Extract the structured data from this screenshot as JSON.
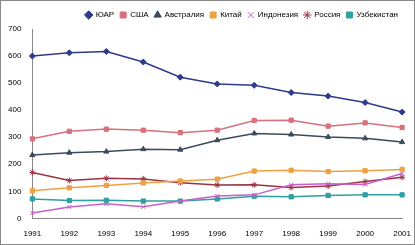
{
  "chart_data": {
    "type": "line",
    "categories": [
      "1991",
      "1992",
      "1993",
      "1994",
      "1995",
      "1996",
      "1997",
      "1998",
      "1999",
      "2000",
      "2001"
    ],
    "series": [
      {
        "name": "ЮАР",
        "color": "#2e3a8c",
        "marker": "diamond",
        "values": [
          600,
          612,
          617,
          578,
          522,
          497,
          492,
          465,
          452,
          428,
          393
        ]
      },
      {
        "name": "США",
        "color": "#d9707c",
        "marker": "square",
        "values": [
          294,
          322,
          330,
          326,
          317,
          326,
          362,
          363,
          341,
          353,
          336
        ]
      },
      {
        "name": "Австралия",
        "color": "#3c4a5c",
        "marker": "triangle",
        "values": [
          234,
          243,
          247,
          256,
          254,
          289,
          314,
          310,
          301,
          296,
          282
        ]
      },
      {
        "name": "Китай",
        "color": "#f0a040",
        "marker": "square",
        "values": [
          102,
          113,
          122,
          131,
          138,
          145,
          175,
          178,
          173,
          176,
          181
        ]
      },
      {
        "name": "Индонезия",
        "color": "#c860c8",
        "marker": "cross",
        "values": [
          20,
          42,
          54,
          43,
          64,
          83,
          87,
          124,
          128,
          125,
          166
        ]
      },
      {
        "name": "Россия",
        "color": "#993344",
        "marker": "star",
        "values": [
          170,
          140,
          148,
          146,
          132,
          123,
          124,
          114,
          120,
          136,
          152
        ]
      },
      {
        "name": "Узбекистан",
        "color": "#2f9fa0",
        "marker": "square",
        "values": [
          72,
          66,
          67,
          64,
          64,
          72,
          82,
          80,
          85,
          87,
          87
        ]
      }
    ],
    "ylim": [
      0,
      700
    ],
    "yticks": [
      0,
      100,
      200,
      300,
      400,
      500,
      600,
      700
    ],
    "grid": false,
    "legend": "upper right"
  }
}
